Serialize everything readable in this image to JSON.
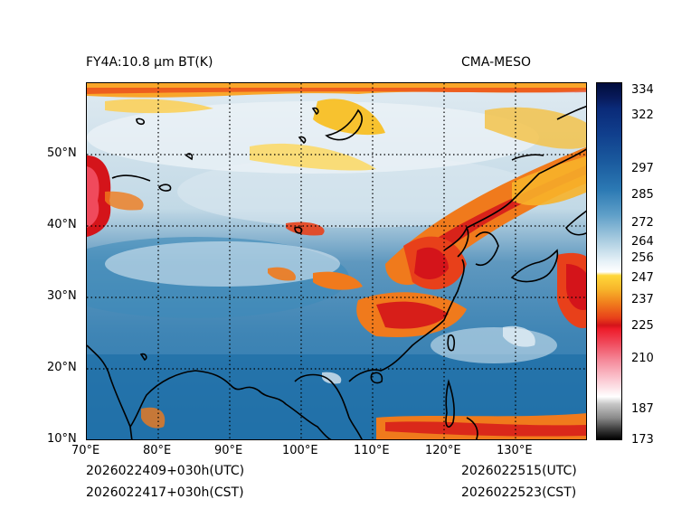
{
  "title_left": "FY4A:10.8 µm BT(K)",
  "title_right": "CMA-MESO",
  "lat_ticks": [
    "10°N",
    "20°N",
    "30°N",
    "40°N",
    "50°N"
  ],
  "lon_ticks": [
    "70°E",
    "80°E",
    "90°E",
    "100°E",
    "110°E",
    "120°E",
    "130°E"
  ],
  "colorbar_ticks": [
    "334",
    "322",
    "297",
    "285",
    "272",
    "264",
    "256",
    "247",
    "237",
    "225",
    "210",
    "187",
    "173"
  ],
  "footer": {
    "init_utc": "2026022409+030h(UTC)",
    "init_cst": "2026022417+030h(CST)",
    "valid_utc": "2026022515(UTC)",
    "valid_cst": "2026022523(CST)"
  }
}
